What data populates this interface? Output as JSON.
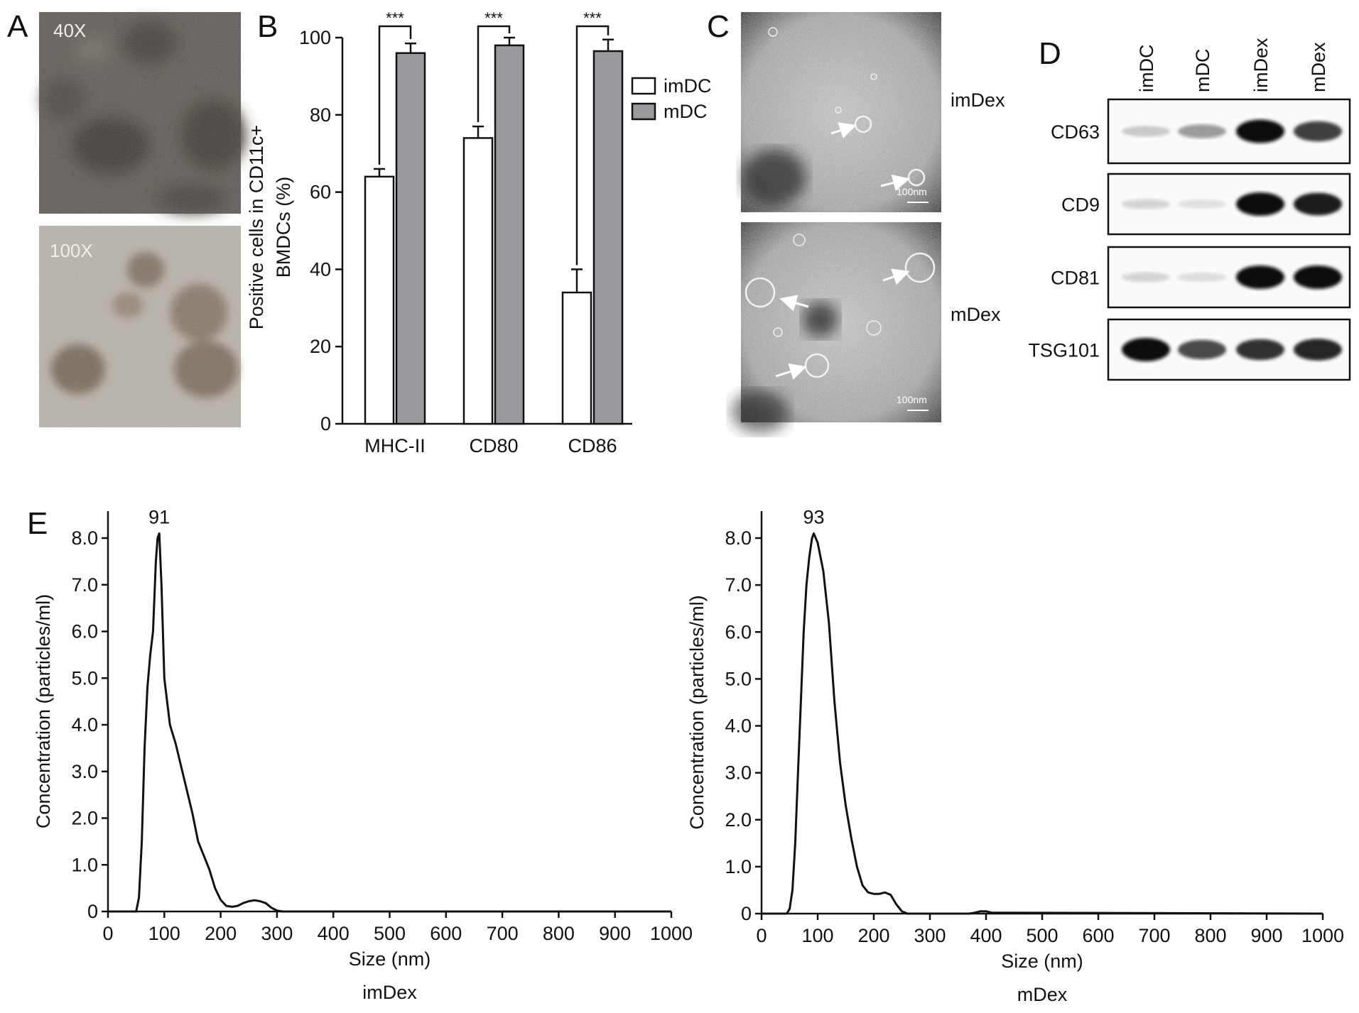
{
  "panels": {
    "A": {
      "letter": "A",
      "images": [
        {
          "magnification": "40X"
        },
        {
          "magnification": "100X"
        }
      ]
    },
    "B": {
      "letter": "B",
      "chart_data": {
        "type": "bar",
        "categories": [
          "MHC-II",
          "CD80",
          "CD86"
        ],
        "series": [
          {
            "name": "imDC",
            "values": [
              64,
              74,
              34
            ],
            "errors": [
              2,
              3,
              6
            ],
            "color": "#ffffff"
          },
          {
            "name": "mDC",
            "values": [
              96,
              98,
              96.5
            ],
            "errors": [
              2.5,
              2,
              3
            ],
            "color": "#9a9a9e"
          }
        ],
        "significance": [
          "***",
          "***",
          "***"
        ],
        "ylabel_line1": "Positive cells in CD11c+",
        "ylabel_line2": "BMDCs (%)",
        "ylim": [
          0,
          100
        ],
        "yticks": [
          "0",
          "20",
          "40",
          "60",
          "80",
          "100"
        ],
        "legend_position": "top-right"
      }
    },
    "C": {
      "letter": "C",
      "images": [
        {
          "label": "imDex",
          "scale": "100nm"
        },
        {
          "label": "mDex",
          "scale": "100nm"
        }
      ]
    },
    "D": {
      "letter": "D",
      "lanes": [
        "imDC",
        "mDC",
        "imDex",
        "mDex"
      ],
      "blots": [
        {
          "name": "CD63",
          "intensity": [
            0.15,
            0.35,
            0.95,
            0.75
          ]
        },
        {
          "name": "CD9",
          "intensity": [
            0.1,
            0.05,
            0.95,
            0.9
          ]
        },
        {
          "name": "CD81",
          "intensity": [
            0.1,
            0.06,
            0.95,
            0.95
          ]
        },
        {
          "name": "TSG101",
          "intensity": [
            0.95,
            0.7,
            0.8,
            0.85
          ]
        }
      ]
    },
    "E": {
      "letter": "E",
      "chart_data": [
        {
          "type": "line",
          "sample": "imDex",
          "peak_label": "91",
          "peak_x": 91,
          "xlabel": "Size (nm)",
          "ylabel": "Concentration (particles/ml)",
          "xlim": [
            0,
            1000
          ],
          "ylim": [
            0,
            8.0
          ],
          "xticks": [
            "0",
            "100",
            "200",
            "300",
            "400",
            "500",
            "600",
            "700",
            "800",
            "900",
            "1000"
          ],
          "yticks": [
            "0",
            "1.0",
            "2.0",
            "3.0",
            "4.0",
            "5.0",
            "6.0",
            "7.0",
            "8.0"
          ],
          "x": [
            0,
            50,
            55,
            60,
            65,
            70,
            75,
            80,
            85,
            88,
            91,
            95,
            100,
            110,
            120,
            130,
            140,
            150,
            160,
            170,
            180,
            190,
            200,
            210,
            220,
            230,
            240,
            250,
            260,
            270,
            280,
            290,
            300,
            310,
            320,
            1000
          ],
          "y": [
            0,
            0,
            0.3,
            1.5,
            3.5,
            4.8,
            5.5,
            6.0,
            7.5,
            8.0,
            8.1,
            7.0,
            5.0,
            4.0,
            3.6,
            3.1,
            2.6,
            2.1,
            1.5,
            1.2,
            0.9,
            0.5,
            0.25,
            0.12,
            0.1,
            0.12,
            0.18,
            0.22,
            0.24,
            0.22,
            0.18,
            0.08,
            0.02,
            0,
            0,
            0
          ]
        },
        {
          "type": "line",
          "sample": "mDex",
          "peak_label": "93",
          "peak_x": 93,
          "xlabel": "Size (nm)",
          "ylabel": "Concentration (particles/ml)",
          "xlim": [
            0,
            1000
          ],
          "ylim": [
            0,
            8.0
          ],
          "xticks": [
            "0",
            "100",
            "200",
            "300",
            "400",
            "500",
            "600",
            "700",
            "800",
            "900",
            "1000"
          ],
          "yticks": [
            "0",
            "1.0",
            "2.0",
            "3.0",
            "4.0",
            "5.0",
            "6.0",
            "7.0",
            "8.0"
          ],
          "x": [
            0,
            45,
            50,
            55,
            60,
            65,
            70,
            75,
            80,
            85,
            90,
            93,
            100,
            110,
            120,
            130,
            140,
            150,
            160,
            170,
            180,
            190,
            200,
            210,
            220,
            230,
            240,
            250,
            260,
            270,
            370,
            380,
            390,
            400,
            410,
            1000
          ],
          "y": [
            0,
            0,
            0.1,
            0.5,
            1.5,
            3.0,
            4.5,
            6.0,
            7.0,
            7.6,
            8.0,
            8.1,
            7.9,
            7.3,
            6.2,
            4.5,
            3.2,
            2.3,
            1.6,
            1.0,
            0.6,
            0.45,
            0.42,
            0.42,
            0.45,
            0.4,
            0.2,
            0.05,
            0,
            0,
            0,
            0.02,
            0.05,
            0.05,
            0.02,
            0
          ]
        }
      ]
    }
  }
}
